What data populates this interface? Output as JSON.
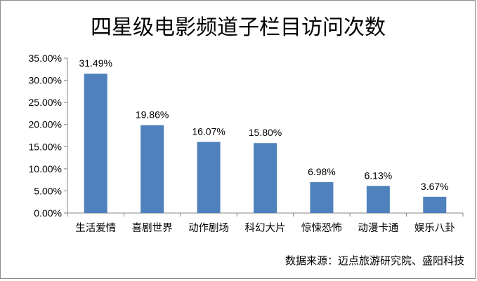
{
  "chart_data": {
    "type": "bar",
    "title": "四星级电影频道子栏目访问次数",
    "categories": [
      "生活爱情",
      "喜剧世界",
      "动作剧场",
      "科幻大片",
      "惊悚恐怖",
      "动漫卡通",
      "娱乐八卦"
    ],
    "values": [
      31.49,
      19.86,
      16.07,
      15.8,
      6.98,
      6.13,
      3.67
    ],
    "data_labels": [
      "31.49%",
      "19.86%",
      "16.07%",
      "15.80%",
      "6.98%",
      "6.13%",
      "3.67%"
    ],
    "ylim": [
      0,
      35
    ],
    "y_ticks": [
      0,
      5,
      10,
      15,
      20,
      25,
      30,
      35
    ],
    "y_tick_labels": [
      "0.00%",
      "5.00%",
      "10.00%",
      "15.00%",
      "20.00%",
      "25.00%",
      "30.00%",
      "35.00%"
    ],
    "xlabel": "",
    "ylabel": "",
    "grid": false,
    "legend": "none",
    "bar_color": "#4f81bd",
    "source": "数据来源：迈点旅游研究院、盛阳科技"
  }
}
